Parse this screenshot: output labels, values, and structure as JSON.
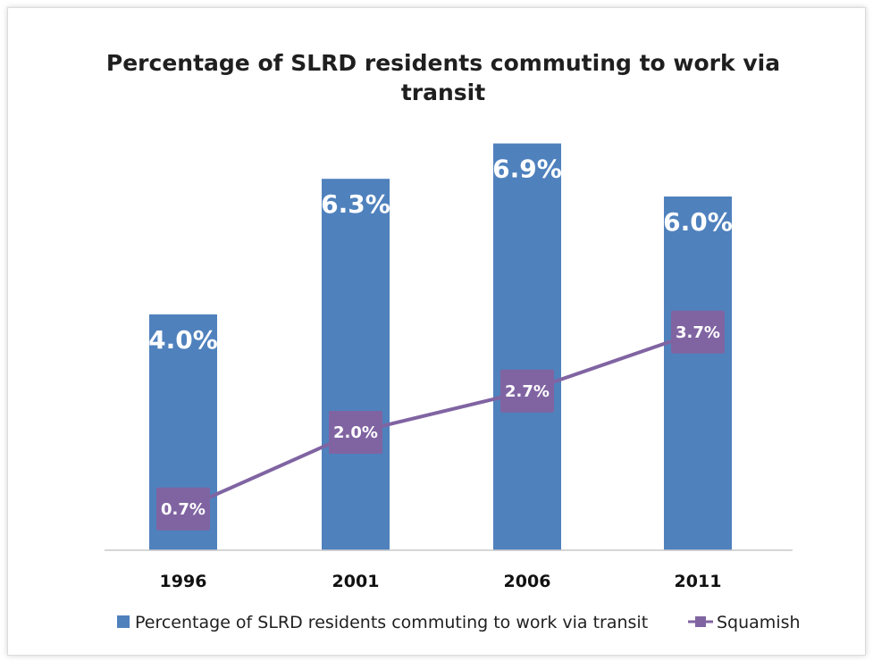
{
  "chart_data": {
    "type": "bar",
    "title_lines": [
      "Percentage of SLRD residents commuting to work via",
      "transit"
    ],
    "categories": [
      "1996",
      "2001",
      "2006",
      "2011"
    ],
    "series": [
      {
        "name": "Percentage of SLRD residents commuting to work via transit",
        "kind": "bar",
        "values": [
          4.0,
          6.3,
          6.9,
          6.0
        ],
        "labels": [
          "4.0%",
          "6.3%",
          "6.9%",
          "6.0%"
        ],
        "color": "#4f81bd"
      },
      {
        "name": "Squamish",
        "kind": "line",
        "values": [
          0.7,
          2.0,
          2.7,
          3.7
        ],
        "labels": [
          "0.7%",
          "2.0%",
          "2.7%",
          "3.7%"
        ],
        "color": "#8064a2"
      }
    ],
    "ylim": [
      0,
      7
    ],
    "grid": false,
    "legend_position": "bottom"
  }
}
